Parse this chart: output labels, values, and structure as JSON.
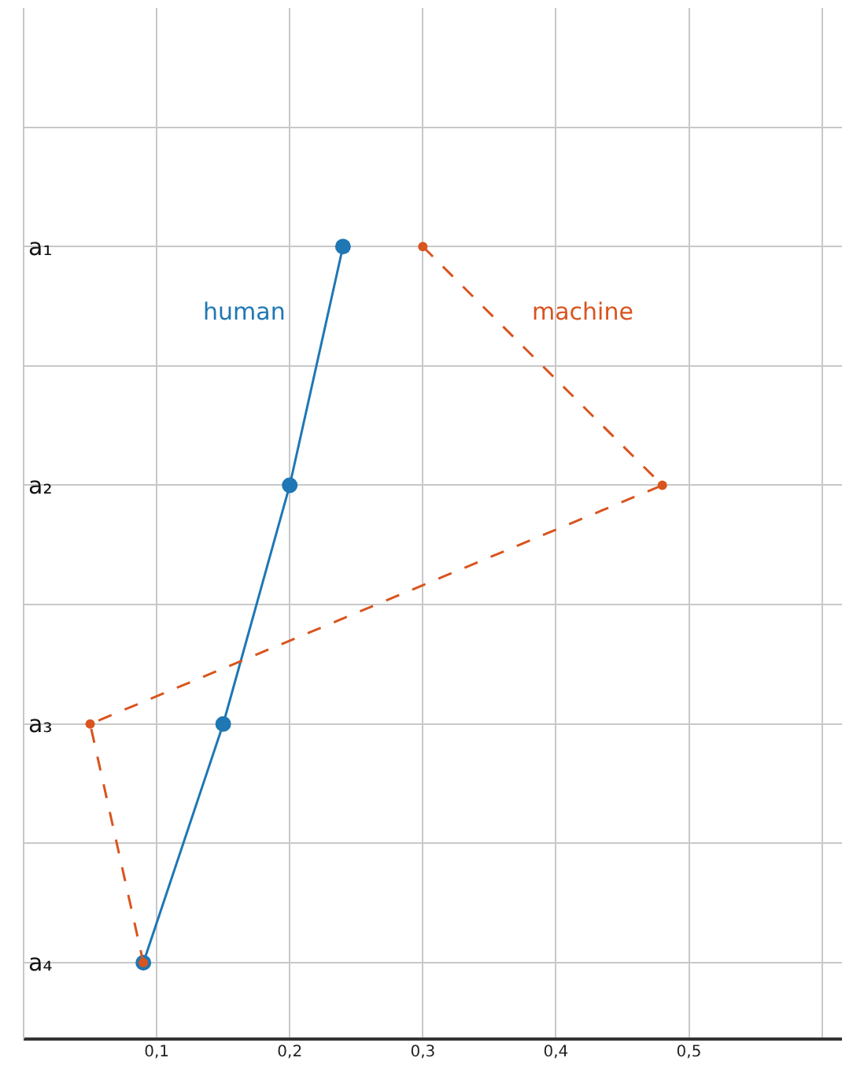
{
  "chart_data": {
    "type": "line",
    "orientation": "horizontal",
    "categories": [
      "a₁",
      "a₂",
      "a₃",
      "a₄"
    ],
    "series": [
      {
        "name": "human",
        "color": "#1f77b4",
        "values": [
          0.24,
          0.2,
          0.15,
          0.09
        ],
        "line_style": "solid"
      },
      {
        "name": "machine",
        "color": "#d9541e",
        "values": [
          0.3,
          0.48,
          0.05,
          0.09
        ],
        "line_style": "dashed"
      }
    ],
    "xlim": [
      0,
      0.615
    ],
    "xticks": [
      {
        "value": 0,
        "label": null
      },
      {
        "value": 0.1,
        "label": "0,1"
      },
      {
        "value": 0.2,
        "label": "0,2"
      },
      {
        "value": 0.3,
        "label": "0,3"
      },
      {
        "value": 0.4,
        "label": "0,4"
      },
      {
        "value": 0.5,
        "label": "0,5"
      },
      {
        "value": 0.6,
        "label": null
      }
    ],
    "grid": true,
    "legend": false,
    "marker": "circle"
  }
}
